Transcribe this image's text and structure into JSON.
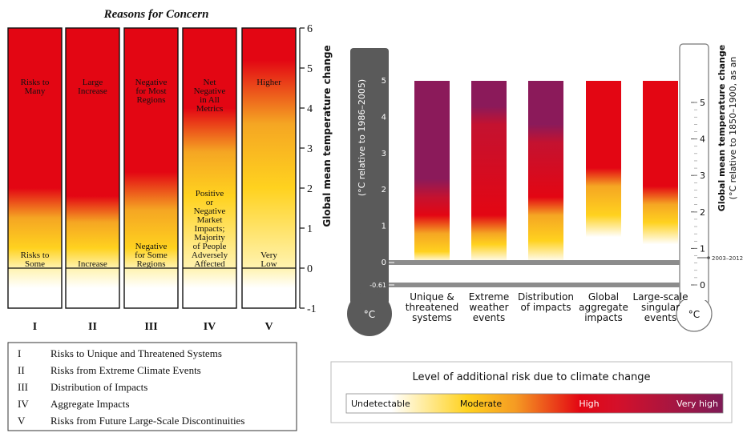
{
  "left_chart": {
    "title": "Reasons for Concern",
    "ylabel": "Global mean temperature change",
    "y_ticks": [
      "6",
      "5",
      "4",
      "3",
      "2",
      "1",
      "0",
      "-1"
    ],
    "columns": [
      {
        "roman": "I",
        "top_text": "Risks to\nMany",
        "bottom_text": "Risks to\nSome"
      },
      {
        "roman": "II",
        "top_text": "Large\nIncrease",
        "bottom_text": "Increase"
      },
      {
        "roman": "III",
        "top_text": "Negative\nfor Most\nRegions",
        "bottom_text": "Negative\nfor Some\nRegions"
      },
      {
        "roman": "IV",
        "top_text": "Net\nNegative\nin All\nMetrics",
        "bottom_text": "Positive\nor\nNegative\nMarket\nImpacts;\nMajority\nof People\nAdversely\nAffected"
      },
      {
        "roman": "V",
        "top_text": "Higher",
        "bottom_text": "Very\nLow"
      }
    ],
    "legend": [
      {
        "num": "I",
        "text": "Risks to Unique and Threatened Systems"
      },
      {
        "num": "II",
        "text": "Risks from Extreme Climate Events"
      },
      {
        "num": "III",
        "text": "Distribution of Impacts"
      },
      {
        "num": "IV",
        "text": "Aggregate Impacts"
      },
      {
        "num": "V",
        "text": "Risks from Future Large-Scale Discontinuities"
      }
    ]
  },
  "right_chart": {
    "left_axis_label": "(°C relative to 1986–2005)",
    "right_axis_label_main": "Global mean temperature change",
    "right_axis_label_sub": "(°C relative to 1850–1900, as an",
    "left_ticks": [
      "5",
      "4",
      "3",
      "2",
      "1",
      "0",
      "-0.61"
    ],
    "right_ticks": [
      "5",
      "4",
      "3",
      "2",
      "1",
      "0"
    ],
    "reference_label": "2003–2012",
    "thermometer_unit": "°C",
    "categories": [
      "Unique &\nthreatened\nsystems",
      "Extreme\nweather\nevents",
      "Distribution\nof impacts",
      "Global\naggregate\nimpacts",
      "Large-scale\nsingular\nevents"
    ],
    "risk_legend": {
      "title": "Level of additional risk due to climate change",
      "levels": [
        "Undetectable",
        "Moderate",
        "High",
        "Very high"
      ]
    }
  },
  "colors": {
    "purple": "#8b1a5a",
    "red": "#e30613",
    "orange": "#f5a623",
    "yellow": "#ffd21f",
    "gray": "#8c8c8c",
    "dark_gray": "#5a5a5a"
  },
  "chart_data": [
    {
      "type": "heatmap",
      "title": "Reasons for Concern",
      "ylabel": "Global mean temperature change",
      "ylim": [
        -1,
        6
      ],
      "categories": [
        "I",
        "II",
        "III",
        "IV",
        "V"
      ],
      "levels": [
        {
          "name": "I",
          "white_to": 0,
          "yellow_at": 0.5,
          "red_from": 2.0
        },
        {
          "name": "II",
          "white_to": 0,
          "yellow_at": 0.5,
          "red_from": 1.8
        },
        {
          "name": "III",
          "white_to": 0,
          "yellow_at": 0.5,
          "red_from": 2.4
        },
        {
          "name": "IV",
          "white_to": 0,
          "yellow_at": 1.8,
          "red_from": 4.0
        },
        {
          "name": "V",
          "white_to": 0,
          "yellow_at": 2.0,
          "red_from": 5.2
        }
      ]
    },
    {
      "type": "heatmap",
      "ylim": [
        -0.61,
        5
      ],
      "categories": [
        "Unique & threatened systems",
        "Extreme weather events",
        "Distribution of impacts",
        "Global aggregate impacts",
        "Large-scale singular events"
      ],
      "series": [
        {
          "name": "Unique & threatened systems",
          "moderate_from": 0.0,
          "high_from": 1.0,
          "very_high_from": 2.0
        },
        {
          "name": "Extreme weather events",
          "moderate_from": 0.2,
          "high_from": 1.0,
          "very_high_from": 4.0
        },
        {
          "name": "Distribution of impacts",
          "moderate_from": 0.3,
          "high_from": 1.5,
          "very_high_from": 3.5
        },
        {
          "name": "Global aggregate impacts",
          "moderate_from": 1.0,
          "high_from": 2.3,
          "very_high_from": null
        },
        {
          "name": "Large-scale singular events",
          "moderate_from": 0.8,
          "high_from": 1.8,
          "very_high_from": null
        }
      ]
    }
  ]
}
